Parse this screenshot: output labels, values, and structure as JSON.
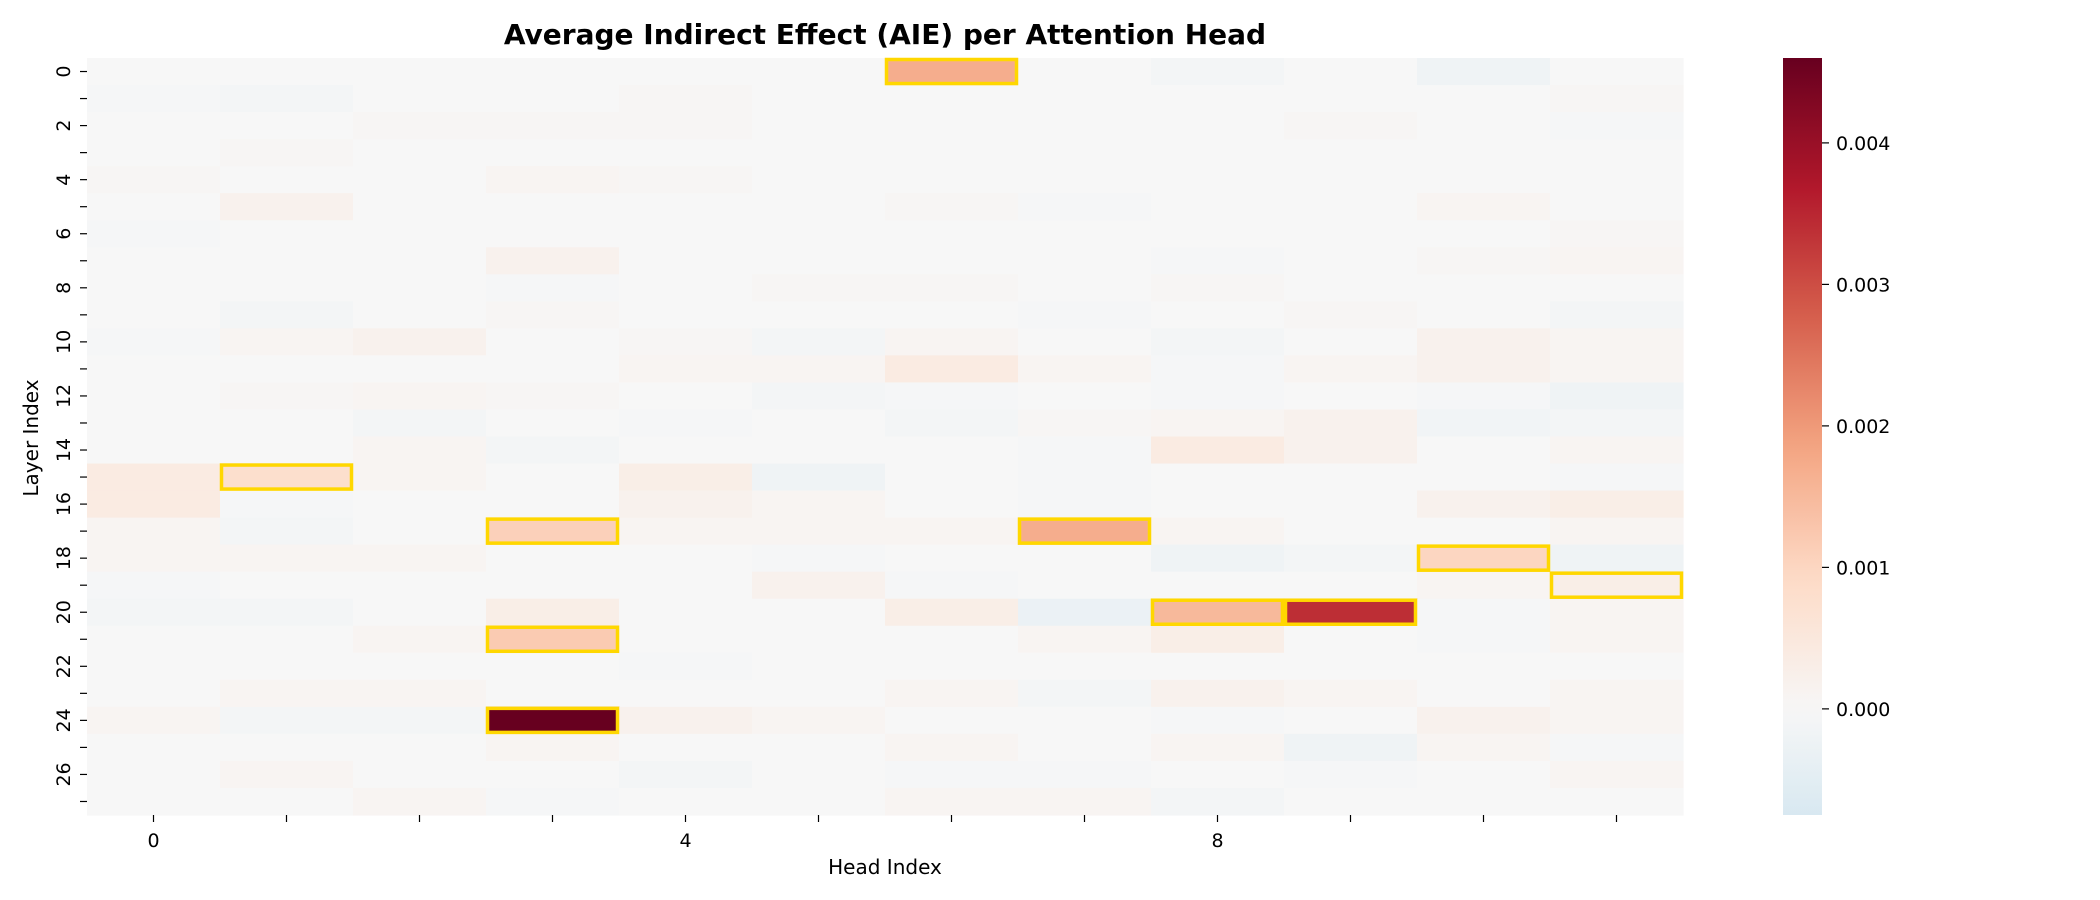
{
  "chart_data": {
    "type": "heatmap",
    "title": "Average Indirect Effect (AIE) per Attention Head",
    "xlabel": "Head Index",
    "ylabel": "Layer Index",
    "x_ticks": [
      0,
      1,
      2,
      3,
      4,
      5,
      6,
      7,
      8,
      9,
      10,
      11
    ],
    "x_tick_labels": [
      "0",
      "",
      "",
      "",
      "4",
      "",
      "",
      "",
      "8",
      "",
      "",
      ""
    ],
    "y_ticks": [
      0,
      1,
      2,
      3,
      4,
      5,
      6,
      7,
      8,
      9,
      10,
      11,
      12,
      13,
      14,
      15,
      16,
      17,
      18,
      19,
      20,
      21,
      22,
      23,
      24,
      25,
      26,
      27
    ],
    "y_tick_labels": [
      "0",
      "",
      "2",
      "",
      "4",
      "",
      "6",
      "",
      "8",
      "",
      "10",
      "",
      "12",
      "",
      "14",
      "",
      "16",
      "",
      "18",
      "",
      "20",
      "",
      "22",
      "",
      "24",
      "",
      "26",
      ""
    ],
    "colorscale": "RdBu_r",
    "vmin": -0.00075,
    "vmax": 0.0046,
    "colorbar_ticks": [
      0.0,
      0.001,
      0.002,
      0.003,
      0.004
    ],
    "colorbar_tick_labels": [
      "0.000",
      "0.001",
      "0.002",
      "0.003",
      "0.004"
    ],
    "highlight_color": "#FFD700",
    "highlighted": [
      [
        0,
        6
      ],
      [
        15,
        1
      ],
      [
        17,
        3
      ],
      [
        17,
        7
      ],
      [
        18,
        10
      ],
      [
        19,
        11
      ],
      [
        20,
        8
      ],
      [
        20,
        9
      ],
      [
        21,
        3
      ],
      [
        24,
        3
      ]
    ],
    "values": [
      [
        0.0,
        0.0,
        0.0,
        0.0,
        0.0,
        0.0,
        0.0017,
        0.0,
        -0.0001,
        0.0,
        -0.0002,
        0.0
      ],
      [
        -5e-05,
        -0.0001,
        0.0,
        0.0,
        5e-05,
        0.0,
        0.0,
        0.0,
        0.0,
        0.0,
        0.0,
        5e-05
      ],
      [
        0.0,
        0.0,
        5e-05,
        5e-05,
        5e-05,
        0.0,
        0.0,
        0.0,
        0.0,
        5e-05,
        0.0,
        -5e-05
      ],
      [
        0.0,
        5e-05,
        0.0,
        0.0,
        0.0,
        0.0,
        0.0,
        0.0,
        0.0,
        0.0,
        0.0,
        0.0
      ],
      [
        5e-05,
        0.0,
        0.0,
        0.0001,
        5e-05,
        0.0,
        0.0,
        0.0,
        0.0,
        0.0,
        0.0,
        0.0
      ],
      [
        0.0,
        0.0002,
        0.0,
        0.0,
        0.0,
        0.0,
        5e-05,
        -5e-05,
        0.0,
        0.0,
        0.0001,
        0.0
      ],
      [
        -5e-05,
        0.0,
        0.0,
        0.0,
        0.0,
        0.0,
        0.0,
        0.0,
        0.0,
        0.0,
        0.0,
        5e-05
      ],
      [
        0.0,
        0.0,
        0.0,
        0.0002,
        0.0,
        0.0,
        0.0,
        0.0,
        -5e-05,
        0.0,
        5e-05,
        0.0001
      ],
      [
        0.0,
        0.0,
        0.0,
        -5e-05,
        0.0,
        5e-05,
        5e-05,
        0.0,
        5e-05,
        0.0,
        0.0,
        0.0
      ],
      [
        0.0,
        -0.0001,
        0.0,
        5e-05,
        0.0,
        0.0,
        0.0,
        -5e-05,
        0.0,
        5e-05,
        0.0,
        -0.0001
      ],
      [
        -5e-05,
        0.0001,
        0.0002,
        0.0,
        5e-05,
        -0.0001,
        0.0001,
        0.0,
        -0.0001,
        0.0,
        0.0002,
        0.0001
      ],
      [
        0.0,
        0.0,
        0.0,
        0.0,
        0.0001,
        0.0001,
        0.0004,
        0.0001,
        -5e-05,
        0.0001,
        0.0002,
        0.0001
      ],
      [
        0.0,
        5e-05,
        0.0001,
        5e-05,
        0.0,
        -0.0001,
        -5e-05,
        0.0,
        -5e-05,
        0.0,
        -5e-05,
        -0.0002
      ],
      [
        0.0,
        0.0,
        -0.0001,
        0.0,
        -5e-05,
        0.0,
        -0.0001,
        5e-05,
        0.0001,
        0.0002,
        -0.00015,
        -0.0001
      ],
      [
        0.0,
        0.0,
        0.0001,
        -0.0001,
        0.0,
        0.0,
        0.0,
        -5e-05,
        0.0004,
        0.0002,
        0.0,
        0.0001
      ],
      [
        0.0004,
        0.0008,
        0.0001,
        0.0,
        0.0003,
        -0.0002,
        0.0,
        -5e-05,
        0.0,
        0.0,
        0.0,
        -5e-05
      ],
      [
        0.0004,
        -5e-05,
        0.0,
        0.0,
        0.0002,
        0.0001,
        0.0,
        -5e-05,
        0.0,
        0.0,
        0.0002,
        0.0003
      ],
      [
        0.0001,
        -0.0001,
        0.0,
        0.0011,
        0.0001,
        0.0001,
        0.0001,
        0.0017,
        0.0001,
        0.0,
        0.0,
        0.0001
      ],
      [
        0.0001,
        0.0001,
        0.0001,
        0.0,
        0.0,
        -5e-05,
        0.0,
        0.0,
        -0.0002,
        -0.0001,
        0.001,
        -0.0002
      ],
      [
        -5e-05,
        0.0,
        0.0,
        0.0,
        0.0,
        0.0002,
        -5e-05,
        0.0,
        0.0,
        0.0,
        0.0001,
        0.0003
      ],
      [
        -0.0001,
        -0.0001,
        0.0,
        0.0003,
        0.0,
        0.0,
        0.0003,
        -0.0003,
        0.0015,
        0.0034,
        -5e-05,
        0.0001
      ],
      [
        0.0,
        0.0,
        0.0001,
        0.0012,
        0.0,
        0.0,
        0.0,
        0.0001,
        0.0003,
        0.0,
        -5e-05,
        0.0001
      ],
      [
        0.0,
        0.0,
        0.0,
        0.0,
        -5e-05,
        0.0,
        0.0,
        0.0,
        0.0,
        0.0,
        0.0,
        0.0
      ],
      [
        0.0,
        0.0001,
        0.0001,
        0.0,
        0.0,
        0.0,
        0.0001,
        -0.0001,
        0.0002,
        0.0001,
        0.0,
        0.0001
      ],
      [
        0.0001,
        -0.0001,
        -0.0001,
        0.0046,
        0.0002,
        0.0001,
        0.0,
        0.0,
        -5e-05,
        0.0,
        0.0002,
        0.0001
      ],
      [
        0.0,
        0.0,
        0.0,
        0.0001,
        0.0,
        0.0,
        0.0001,
        0.0,
        0.0001,
        -0.0002,
        0.0001,
        -5e-05
      ],
      [
        0.0,
        0.0001,
        0.0,
        0.0,
        -0.0001,
        0.0,
        -5e-05,
        -5e-05,
        0.0,
        -5e-05,
        0.0,
        0.0001
      ],
      [
        0.0,
        0.0,
        0.0001,
        -5e-05,
        0.0,
        0.0,
        0.0001,
        0.0001,
        -0.0001,
        0.0,
        0.0,
        0.0
      ]
    ]
  }
}
